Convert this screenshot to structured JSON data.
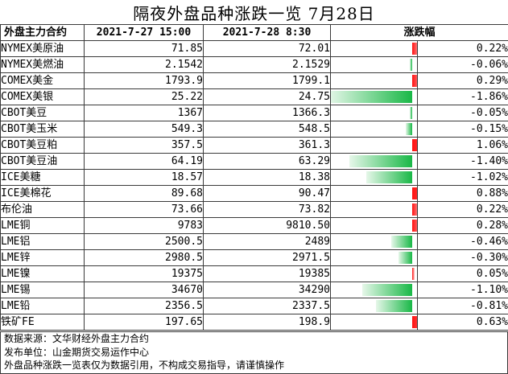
{
  "title": "隔夜外盘品种涨跌一览 7月28日",
  "table": {
    "headers": [
      "外盘主力合约",
      "2021-7-27 15:00",
      "2021-7-28 8:30",
      "涨跌幅"
    ]
  },
  "chart_data": {
    "type": "table",
    "title": "隔夜外盘品种涨跌一览 7月28日",
    "columns": [
      "外盘主力合约",
      "2021-7-27 15:00",
      "2021-7-28 8:30",
      "涨跌幅"
    ],
    "rows": [
      {
        "name": "NYMEX美原油",
        "prev": "71.85",
        "curr": "72.01",
        "change": "0.22%",
        "value": 0.22
      },
      {
        "name": "NYMEX美燃油",
        "prev": "2.1542",
        "curr": "2.1529",
        "change": "-0.06%",
        "value": -0.06
      },
      {
        "name": "COMEX美金",
        "prev": "1793.9",
        "curr": "1799.1",
        "change": "0.29%",
        "value": 0.29
      },
      {
        "name": "COMEX美银",
        "prev": "25.22",
        "curr": "24.75",
        "change": "-1.86%",
        "value": -1.86
      },
      {
        "name": "CBOT美豆",
        "prev": "1367",
        "curr": "1366.3",
        "change": "-0.05%",
        "value": -0.05
      },
      {
        "name": "CBOT美玉米",
        "prev": "549.3",
        "curr": "548.5",
        "change": "-0.15%",
        "value": -0.15
      },
      {
        "name": "CBOT美豆粕",
        "prev": "357.5",
        "curr": "361.3",
        "change": "1.06%",
        "value": 1.06
      },
      {
        "name": "CBOT美豆油",
        "prev": "64.19",
        "curr": "63.29",
        "change": "-1.40%",
        "value": -1.4
      },
      {
        "name": "ICE美糖",
        "prev": "18.57",
        "curr": "18.38",
        "change": "-1.02%",
        "value": -1.02
      },
      {
        "name": "ICE美棉花",
        "prev": "89.68",
        "curr": "90.47",
        "change": "0.88%",
        "value": 0.88
      },
      {
        "name": "布伦油",
        "prev": "73.66",
        "curr": "73.82",
        "change": "0.22%",
        "value": 0.22
      },
      {
        "name": "LME铜",
        "prev": "9783",
        "curr": "9810.50",
        "change": "0.28%",
        "value": 0.28
      },
      {
        "name": "LME铝",
        "prev": "2500.5",
        "curr": "2489",
        "change": "-0.46%",
        "value": -0.46
      },
      {
        "name": "LME锌",
        "prev": "2980.5",
        "curr": "2971.5",
        "change": "-0.30%",
        "value": -0.3
      },
      {
        "name": "LME镍",
        "prev": "19375",
        "curr": "19385",
        "change": "0.05%",
        "value": 0.05
      },
      {
        "name": "LME锡",
        "prev": "34670",
        "curr": "34290",
        "change": "-1.10%",
        "value": -1.1
      },
      {
        "name": "LME铅",
        "prev": "2356.5",
        "curr": "2337.5",
        "change": "-0.81%",
        "value": -0.81
      },
      {
        "name": "铁矿FE",
        "prev": "197.65",
        "curr": "198.9",
        "change": "0.63%",
        "value": 0.63
      }
    ],
    "bar_scale_max": 1.86,
    "colors": {
      "up": "#ff1010",
      "down": "#19b847"
    }
  },
  "notes": [
    "数据来源：文华财经外盘主力合约",
    "发布单位：山金期货交易运作中心",
    "外盘品种涨跌一览表仅为数据引用，不构成交易指导，请谨慎操作"
  ]
}
